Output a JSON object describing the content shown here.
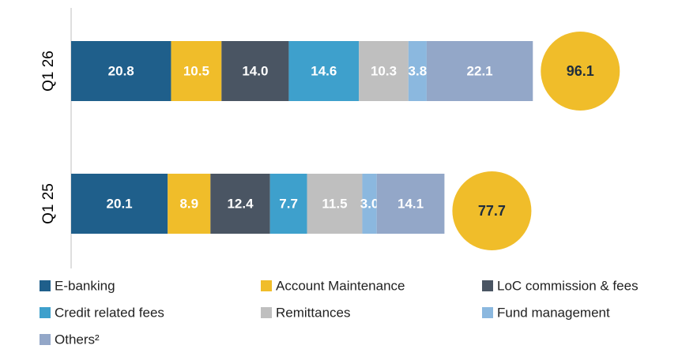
{
  "chart_data": {
    "type": "stacked-bar-horizontal",
    "categories": [
      "Q1 26",
      "Q1 25"
    ],
    "series": [
      {
        "name": "E-banking",
        "color": "#1f5f8b",
        "values": [
          20.8,
          20.1
        ],
        "value_labels": [
          "20.8",
          "20.1"
        ]
      },
      {
        "name": "Account Maintenance",
        "color": "#f0bd2a",
        "values": [
          10.5,
          8.9
        ],
        "value_labels": [
          "10.5",
          "8.9"
        ]
      },
      {
        "name": "LoC commission & fees",
        "color": "#4a5563",
        "values": [
          14.0,
          12.4
        ],
        "value_labels": [
          "14.0",
          "12.4"
        ]
      },
      {
        "name": "Credit related fees",
        "color": "#3ea0cc",
        "values": [
          14.6,
          7.7
        ],
        "value_labels": [
          "14.6",
          "7.7"
        ]
      },
      {
        "name": "Remittances",
        "color": "#bfbfbf",
        "values": [
          10.3,
          11.5
        ],
        "value_labels": [
          "10.3",
          "11.5"
        ]
      },
      {
        "name": "Fund management",
        "color": "#8bb8df",
        "values": [
          3.8,
          3.0
        ],
        "value_labels": [
          "3.8",
          "3.0"
        ]
      },
      {
        "name": "Others²",
        "color": "#93a7c8",
        "values": [
          22.1,
          14.1
        ],
        "value_labels": [
          "22.1",
          "14.1"
        ]
      }
    ],
    "totals": [
      96.1,
      77.7
    ],
    "totals_color": "#f0bd2a"
  }
}
